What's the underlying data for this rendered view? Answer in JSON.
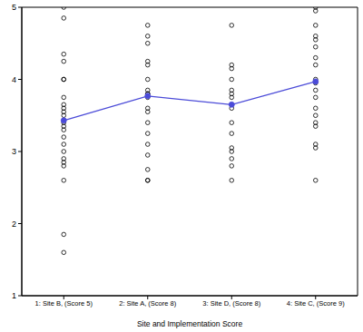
{
  "chart_data": {
    "type": "scatter",
    "x_label": "Site and Implementation Score",
    "categories": [
      "1: Site B, (Score 5)",
      "2: Site A, (Score 8)",
      "3: Site D, (Score 8)",
      "4: Site C, (Score 9)"
    ],
    "ylim": [
      1,
      5
    ],
    "yticks": [
      1,
      2,
      3,
      4,
      5
    ],
    "grid": false,
    "series": [
      {
        "type": "scatter",
        "marker": "open_circle",
        "color": "#000000",
        "values": [
          [
            5.0,
            4.85,
            4.35,
            4.25,
            4.0,
            4.0,
            3.75,
            3.65,
            3.6,
            3.55,
            3.5,
            3.4,
            3.35,
            3.3,
            3.2,
            3.1,
            3.0,
            2.9,
            2.85,
            2.8,
            2.6,
            1.85,
            1.6
          ],
          [
            4.75,
            4.6,
            4.5,
            4.25,
            4.2,
            4.0,
            3.85,
            3.8,
            3.8,
            3.75,
            3.6,
            3.55,
            3.4,
            3.25,
            3.1,
            2.95,
            2.75,
            2.6,
            2.6
          ],
          [
            4.75,
            4.2,
            4.15,
            4.0,
            3.85,
            3.8,
            3.75,
            3.6,
            3.4,
            3.25,
            3.05,
            3.0,
            2.9,
            2.8,
            2.6
          ],
          [
            5.0,
            4.95,
            4.75,
            4.6,
            4.55,
            4.45,
            4.3,
            4.2,
            4.0,
            3.95,
            3.85,
            3.75,
            3.6,
            3.5,
            3.4,
            3.35,
            3.1,
            3.05,
            2.6
          ]
        ]
      },
      {
        "type": "line",
        "marker": "filled_circle",
        "color": "#4b4bd8",
        "values": [
          3.43,
          3.77,
          3.65,
          3.97
        ]
      }
    ]
  }
}
